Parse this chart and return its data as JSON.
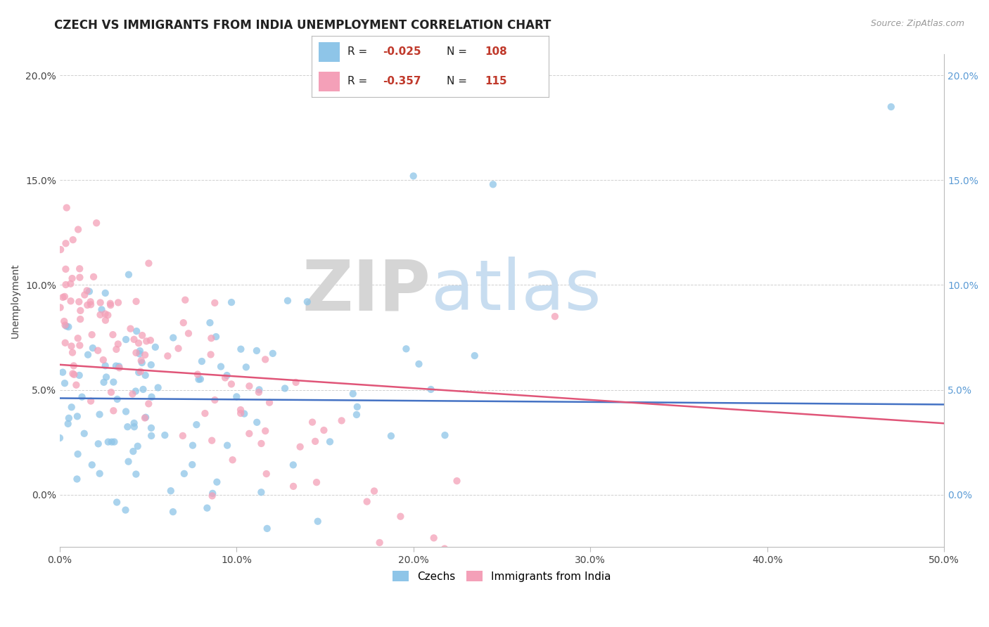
{
  "title": "CZECH VS IMMIGRANTS FROM INDIA UNEMPLOYMENT CORRELATION CHART",
  "source_text": "Source: ZipAtlas.com",
  "ylabel": "Unemployment",
  "watermark_zip": "ZIP",
  "watermark_atlas": "atlas",
  "xmin": 0.0,
  "xmax": 0.5,
  "ymin": -0.025,
  "ymax": 0.21,
  "x_ticks": [
    0.0,
    0.1,
    0.2,
    0.3,
    0.4,
    0.5
  ],
  "x_tick_labels": [
    "0.0%",
    "10.0%",
    "20.0%",
    "30.0%",
    "40.0%",
    "50.0%"
  ],
  "y_ticks": [
    0.0,
    0.05,
    0.1,
    0.15,
    0.2
  ],
  "y_tick_labels": [
    "0.0%",
    "5.0%",
    "10.0%",
    "15.0%",
    "20.0%"
  ],
  "czech_color": "#8ec5e8",
  "india_color": "#f4a0b8",
  "czech_line_color": "#4472c4",
  "india_line_color": "#e05578",
  "czech_label": "Czechs",
  "india_label": "Immigrants from India",
  "czech_R": -0.025,
  "czech_N": 108,
  "india_R": -0.357,
  "india_N": 115,
  "title_fontsize": 12,
  "label_fontsize": 10,
  "tick_fontsize": 10,
  "legend_fontsize": 11,
  "right_tick_color": "#5b9bd5",
  "grid_color": "#d0d0d0",
  "czech_line_start_y": 0.046,
  "czech_line_end_y": 0.043,
  "india_line_start_y": 0.062,
  "india_line_end_y": 0.034
}
